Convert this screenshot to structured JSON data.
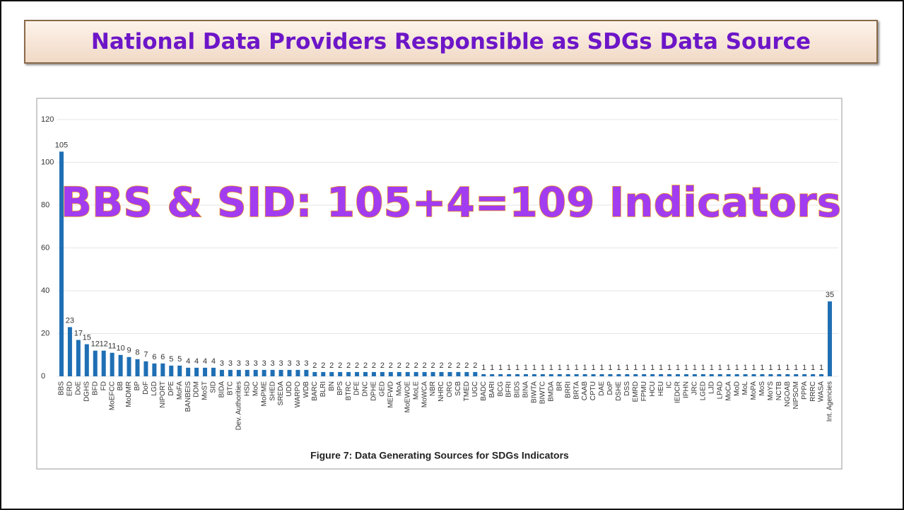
{
  "slide_title": "National Data Providers Responsible as SDGs Data Source",
  "chart_data": {
    "type": "bar",
    "title": "Figure 7: Data Generating Sources for SDGs Indicators",
    "annotation": "BBS & SID: 105+4=109 Indicators",
    "categories": [
      "BBS",
      "ERD",
      "DoE",
      "DGHS",
      "BFD",
      "FD",
      "MoEFCC",
      "BB",
      "MoDMR",
      "BP",
      "DoF",
      "LGD",
      "NIPORT",
      "DPE",
      "MoFA",
      "BANBEIS",
      "DDM",
      "MoST",
      "SID",
      "BIDA",
      "BTC",
      "Dev. Authorities",
      "HSD",
      "MoC",
      "MoPME",
      "SHED",
      "SREDA",
      "UDD",
      "WARPO",
      "WDB",
      "BARC",
      "BLRI",
      "BN",
      "BPS",
      "BTRC",
      "DFE",
      "DNC",
      "DPHE",
      "GED",
      "MEFWD",
      "MoA",
      "MoEWOE",
      "MoLE",
      "MoWCA",
      "NBR",
      "NHRC",
      "ORG",
      "SCB",
      "TMED",
      "UGC",
      "BADC",
      "BARI",
      "BCG",
      "BFRI",
      "BIDS",
      "BINA",
      "BIWTA",
      "BIWTC",
      "BMDA",
      "BR",
      "BRRI",
      "BRTA",
      "CAAB",
      "CPTU",
      "DAE",
      "DoP",
      "DSHE",
      "DSS",
      "EMRD",
      "FPMU",
      "HCU",
      "HEU",
      "IC",
      "IEDCR",
      "IPHN",
      "JRC",
      "LGED",
      "LJD",
      "LPAD",
      "MoCA",
      "MoD",
      "MoL",
      "MoPA",
      "MoS",
      "MoYS",
      "NCTB",
      "NGOAB",
      "NIPSOM",
      "PPPA",
      "RRRC",
      "WASA",
      "Int. Agencies"
    ],
    "values": [
      105,
      23,
      17,
      15,
      12,
      12,
      11,
      10,
      9,
      8,
      7,
      6,
      6,
      5,
      5,
      4,
      4,
      4,
      4,
      3,
      3,
      3,
      3,
      3,
      3,
      3,
      3,
      3,
      3,
      3,
      2,
      2,
      2,
      2,
      2,
      2,
      2,
      2,
      2,
      2,
      2,
      2,
      2,
      2,
      2,
      2,
      2,
      2,
      2,
      2,
      1,
      1,
      1,
      1,
      1,
      1,
      1,
      1,
      1,
      1,
      1,
      1,
      1,
      1,
      1,
      1,
      1,
      1,
      1,
      1,
      1,
      1,
      1,
      1,
      1,
      1,
      1,
      1,
      1,
      1,
      1,
      1,
      1,
      1,
      1,
      1,
      1,
      1,
      1,
      1,
      1,
      35
    ],
    "color": "#1f6fb4",
    "ylim": [
      0,
      120
    ],
    "yticks": [
      0,
      20,
      40,
      60,
      80,
      100,
      120
    ],
    "grid": true
  }
}
